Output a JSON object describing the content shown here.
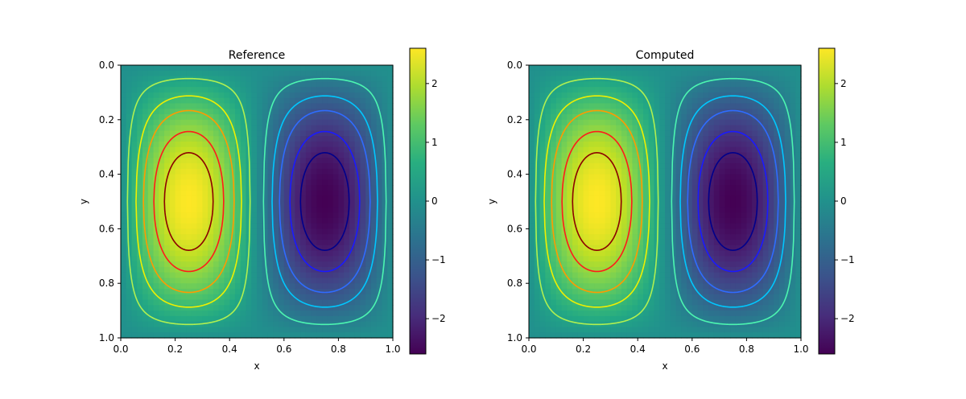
{
  "chart_data": [
    {
      "type": "heatmap",
      "title": "Reference",
      "xlabel": "x",
      "ylabel": "y",
      "xlim": [
        0.0,
        1.0
      ],
      "ylim": [
        1.0,
        0.0
      ],
      "y_axis_inverted": true,
      "x_ticks": [
        "0.0",
        "0.2",
        "0.4",
        "0.6",
        "0.8",
        "1.0"
      ],
      "y_ticks": [
        "0.0",
        "0.2",
        "0.4",
        "0.6",
        "0.8",
        "1.0"
      ],
      "colormap": "viridis",
      "colorbar": {
        "range": [
          -2.6,
          2.6
        ],
        "ticks": [
          -2,
          -1,
          0,
          1,
          2
        ],
        "tick_labels": [
          "−2",
          "−1",
          "0",
          "1",
          "2"
        ]
      },
      "field": "2.6 * sin(2*pi*x) * sin(pi*y)",
      "grid": false,
      "contours": {
        "levels": [
          -2.2,
          -1.8,
          -1.3,
          -0.9,
          -0.4,
          0.4,
          0.9,
          1.3,
          1.8,
          2.2
        ],
        "colors": [
          "#00008b",
          "#1a1aff",
          "#2f6cff",
          "#00c8ff",
          "#4cf5b0",
          "#b0f050",
          "#f0f000",
          "#ff9a00",
          "#ff1a1a",
          "#8b0000"
        ]
      }
    },
    {
      "type": "heatmap",
      "title": "Computed",
      "xlabel": "x",
      "ylabel": "y",
      "xlim": [
        0.0,
        1.0
      ],
      "ylim": [
        1.0,
        0.0
      ],
      "y_axis_inverted": true,
      "x_ticks": [
        "0.0",
        "0.2",
        "0.4",
        "0.6",
        "0.8",
        "1.0"
      ],
      "y_ticks": [
        "0.0",
        "0.2",
        "0.4",
        "0.6",
        "0.8",
        "1.0"
      ],
      "colormap": "viridis",
      "colorbar": {
        "range": [
          -2.6,
          2.6
        ],
        "ticks": [
          -2,
          -1,
          0,
          1,
          2
        ],
        "tick_labels": [
          "−2",
          "−1",
          "0",
          "1",
          "2"
        ]
      },
      "field": "2.6 * sin(2*pi*x) * sin(pi*y)",
      "grid": false,
      "contours": {
        "levels": [
          -2.2,
          -1.8,
          -1.3,
          -0.9,
          -0.4,
          0.4,
          0.9,
          1.3,
          1.8,
          2.2
        ],
        "colors": [
          "#00008b",
          "#1a1aff",
          "#2f6cff",
          "#00c8ff",
          "#4cf5b0",
          "#b0f050",
          "#f0f000",
          "#ff9a00",
          "#ff1a1a",
          "#8b0000"
        ]
      }
    }
  ]
}
